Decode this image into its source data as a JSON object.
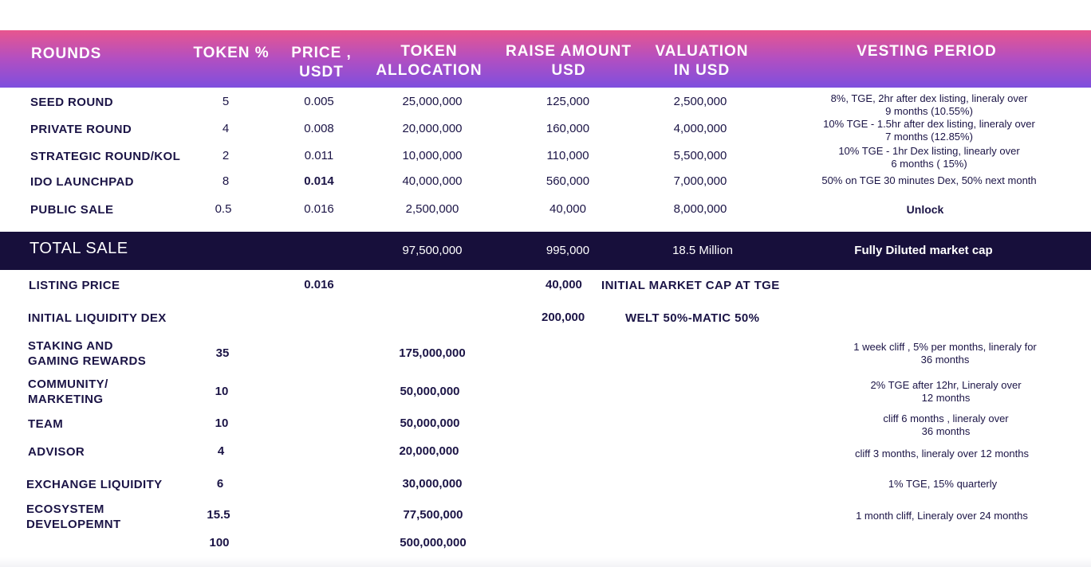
{
  "headers": {
    "rounds": "ROUNDS",
    "token_pct": "TOKEN %",
    "price": [
      "PRICE ,",
      "USDT"
    ],
    "allocation": [
      "TOKEN",
      "ALLOCATION"
    ],
    "raise": [
      "RAISE AMOUNT",
      "USD"
    ],
    "valuation": [
      "VALUATION",
      "IN USD"
    ],
    "vesting": "VESTING PERIOD"
  },
  "sale_rounds": [
    {
      "name": "SEED ROUND",
      "token_pct": "5",
      "price": "0.005",
      "allocation": "25,000,000",
      "raise": "125,000",
      "valuation": "2,500,000",
      "vesting": [
        "8%, TGE, 2hr after dex listing, lineraly over",
        "9 months  (10.55%)"
      ]
    },
    {
      "name": "PRIVATE ROUND",
      "token_pct": "4",
      "price": "0.008",
      "allocation": "20,000,000",
      "raise": "160,000",
      "valuation": "4,000,000",
      "vesting": [
        "10% TGE - 1.5hr after dex listing, lineraly over",
        "7 months (12.85%)"
      ]
    },
    {
      "name": "STRATEGIC ROUND/KOL",
      "token_pct": "2",
      "price": "0.011",
      "allocation": "10,000,000",
      "raise": "110,000",
      "valuation": "5,500,000",
      "vesting": [
        "10% TGE - 1hr Dex listing, linearly over",
        "6 months ( 15%)"
      ]
    },
    {
      "name": "IDO LAUNCHPAD",
      "token_pct": "8",
      "price": "0.014",
      "allocation": "40,000,000",
      "raise": "560,000",
      "valuation": "7,000,000",
      "vesting": [
        "50% on TGE 30 minutes Dex, 50% next month"
      ]
    },
    {
      "name": "PUBLIC SALE",
      "token_pct": "0.5",
      "price": "0.016",
      "allocation": "2,500,000",
      "raise": "40,000",
      "valuation": "8,000,000",
      "vesting": [
        "Unlock"
      ]
    }
  ],
  "total_sale": {
    "label": "TOTAL SALE",
    "allocation": "97,500,000",
    "raise": "995,000",
    "valuation": "18.5 Million",
    "note": "Fully Diluted market cap"
  },
  "listing": {
    "label": "LISTING PRICE",
    "price": "0.016",
    "amount": "40,000",
    "note": "INITIAL MARKET CAP AT TGE"
  },
  "liquidity": {
    "label": "INITIAL LIQUIDITY DEX",
    "amount": "200,000",
    "note": "WELT 50%-MATIC 50%"
  },
  "distribution": [
    {
      "name": [
        "STAKING AND",
        "GAMING REWARDS"
      ],
      "pct": "35",
      "allocation": "175,000,000",
      "vesting": [
        "1 week cliff , 5% per months, lineraly for",
        "36 months"
      ]
    },
    {
      "name": [
        "COMMUNITY/",
        "MARKETING"
      ],
      "pct": "10",
      "allocation": "50,000,000",
      "vesting": [
        "2% TGE after 12hr,  Lineraly over",
        "12 months"
      ]
    },
    {
      "name": [
        "TEAM"
      ],
      "pct": "10",
      "allocation": "50,000,000",
      "vesting": [
        "cliff 6 months , lineraly over",
        "36 months"
      ]
    },
    {
      "name": [
        "ADVISOR"
      ],
      "pct": "4",
      "allocation": "20,000,000",
      "vesting": [
        "cliff 3 months, lineraly over 12 months"
      ]
    },
    {
      "name": [
        "EXCHANGE LIQUIDITY"
      ],
      "pct": "6",
      "allocation": "30,000,000",
      "vesting": [
        "1% TGE,  15% quarterly"
      ]
    },
    {
      "name": [
        "ECOSYSTEM",
        "DEVELOPEMNT"
      ],
      "pct": "15.5",
      "allocation": "77,500,000",
      "vesting": [
        "1 month cliff,  Lineraly over 24 months"
      ]
    }
  ],
  "totals": {
    "pct": "100",
    "allocation": "500,000,000"
  },
  "colors": {
    "header_top": "#e8568e",
    "header_bottom": "#7e4fde",
    "dark_bar": "#170f3b",
    "text": "#1b1446"
  }
}
